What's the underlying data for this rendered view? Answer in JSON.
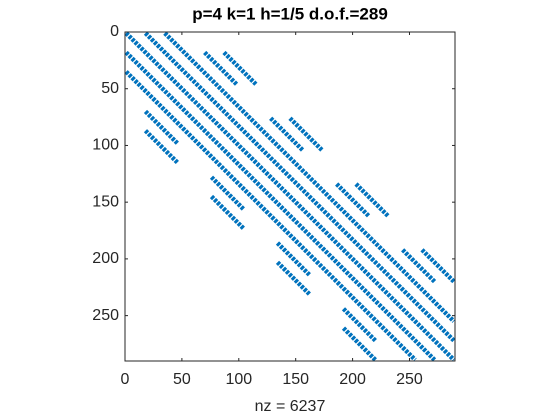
{
  "chart_data": {
    "type": "spy",
    "title": "p=4 k=1 h=1/5 d.o.f.=289",
    "xlabel": "nz = 6237",
    "color": "#0072bd",
    "xlim": [
      0,
      290
    ],
    "ylim": [
      0,
      290
    ],
    "xticks": [
      0,
      50,
      100,
      150,
      200,
      250
    ],
    "yticks": [
      0,
      50,
      100,
      150,
      200,
      250
    ],
    "segments": [
      {
        "rows": [
          1,
          289
        ],
        "offset": 0
      },
      {
        "rows": [
          1,
          272
        ],
        "offset": 17
      },
      {
        "rows": [
          1,
          255
        ],
        "offset": 34
      },
      {
        "rows": [
          18,
          289
        ],
        "offset": -17
      },
      {
        "rows": [
          35,
          289
        ],
        "offset": -34
      },
      {
        "rows": [
          18,
          46
        ],
        "offset": 52
      },
      {
        "rows": [
          18,
          46
        ],
        "offset": 69
      },
      {
        "rows": [
          70,
          98
        ],
        "offset": -52
      },
      {
        "rows": [
          87,
          115
        ],
        "offset": -69
      },
      {
        "rows": [
          76,
          104
        ],
        "offset": 52
      },
      {
        "rows": [
          76,
          104
        ],
        "offset": 69
      },
      {
        "rows": [
          128,
          156
        ],
        "offset": -52
      },
      {
        "rows": [
          145,
          173
        ],
        "offset": -69
      },
      {
        "rows": [
          134,
          162
        ],
        "offset": 52
      },
      {
        "rows": [
          134,
          162
        ],
        "offset": 69
      },
      {
        "rows": [
          186,
          214
        ],
        "offset": -52
      },
      {
        "rows": [
          203,
          231
        ],
        "offset": -69
      },
      {
        "rows": [
          192,
          220
        ],
        "offset": 52
      },
      {
        "rows": [
          192,
          220
        ],
        "offset": 69
      },
      {
        "rows": [
          244,
          272
        ],
        "offset": -52
      },
      {
        "rows": [
          261,
          289
        ],
        "offset": -69
      }
    ]
  }
}
